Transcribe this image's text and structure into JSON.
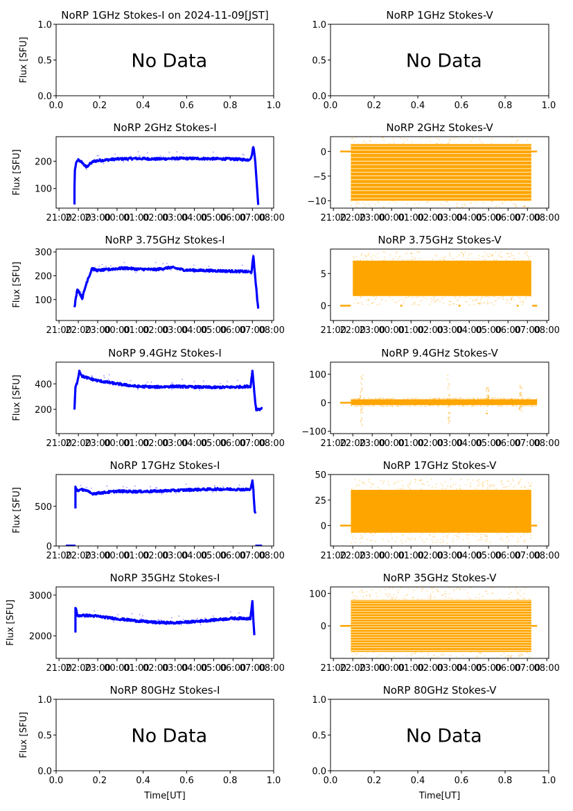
{
  "figure": {
    "date_label": "2024-11-09[JST]",
    "xlabel": "Time[UT]",
    "ylabel": "Flux [SFU]",
    "no_data_text": "No Data",
    "colors": {
      "stokes_i": "#0000ff",
      "stokes_v": "#ffa500",
      "axes": "#000000"
    }
  },
  "chart_data": [
    {
      "id": "1ghz-i",
      "type": "scatter",
      "title": "NoRP 1GHz Stokes-I on 2024-11-09[JST]",
      "ylabel": "Flux [SFU]",
      "has_data": false,
      "no_data_text": "No Data",
      "xlim": [
        0,
        1
      ],
      "ylim": [
        0,
        1
      ],
      "xticks": [
        "0.0",
        "0.2",
        "0.4",
        "0.6",
        "0.8",
        "1.0"
      ],
      "yticks": [
        "0.0",
        "0.5",
        "1.0"
      ]
    },
    {
      "id": "1ghz-v",
      "type": "scatter",
      "title": "NoRP 1GHz Stokes-V",
      "ylabel": "",
      "has_data": false,
      "no_data_text": "No Data",
      "xlim": [
        0,
        1
      ],
      "ylim": [
        0,
        1
      ],
      "xticks": [
        "0.0",
        "0.2",
        "0.4",
        "0.6",
        "0.8",
        "1.0"
      ],
      "yticks": [
        "0.0",
        "0.5",
        "1.0"
      ]
    },
    {
      "id": "2ghz-i",
      "type": "line",
      "title": "NoRP 2GHz Stokes-I",
      "ylabel": "Flux [SFU]",
      "has_data": true,
      "stokes": "I",
      "xlim_hours": [
        -3.15,
        8.1
      ],
      "ylim": [
        28,
        290
      ],
      "yticks": [
        100,
        200
      ],
      "xticks": [
        "21:00",
        "22:00",
        "23:00",
        "00:00",
        "01:00",
        "02:00",
        "03:00",
        "04:00",
        "05:00",
        "06:00",
        "07:00",
        "08:00"
      ],
      "x_hours": [
        -2.2,
        -2.2,
        -2.18,
        -2.15,
        -2.1,
        -2.0,
        -1.8,
        -1.6,
        -1.4,
        -1.2,
        -1.0,
        -0.5,
        0.0,
        1.0,
        2.0,
        3.0,
        4.0,
        5.0,
        6.0,
        6.8,
        6.95,
        7.05,
        7.15,
        7.25,
        7.3
      ],
      "values": [
        40,
        100,
        165,
        180,
        195,
        205,
        195,
        178,
        190,
        200,
        202,
        205,
        208,
        210,
        208,
        210,
        210,
        209,
        208,
        205,
        215,
        255,
        200,
        90,
        40
      ]
    },
    {
      "id": "2ghz-v",
      "type": "scatter",
      "title": "NoRP 2GHz Stokes-V",
      "ylabel": "",
      "has_data": true,
      "stokes": "V",
      "xlim_hours": [
        -3.15,
        8.1
      ],
      "ylim": [
        -11.5,
        3
      ],
      "yticks": [
        -10,
        -5,
        0
      ],
      "xticks": [
        "21:00",
        "22:00",
        "23:00",
        "00:00",
        "01:00",
        "02:00",
        "03:00",
        "04:00",
        "05:00",
        "06:00",
        "07:00",
        "08:00"
      ],
      "band_range": [
        -10,
        1.5
      ],
      "band_x_hours": [
        -2.1,
        7.2
      ],
      "quantized_levels_step": 0.75,
      "flat_segments": [
        {
          "x_hours": [
            -2.65,
            -2.1
          ],
          "value": 0
        },
        {
          "x_hours": [
            7.2,
            7.5
          ],
          "value": 0
        }
      ]
    },
    {
      "id": "3-75ghz-i",
      "type": "line",
      "title": "NoRP 3.75GHz Stokes-I",
      "ylabel": "Flux [SFU]",
      "has_data": true,
      "stokes": "I",
      "xlim_hours": [
        -3.15,
        8.1
      ],
      "ylim": [
        12,
        312
      ],
      "yticks": [
        100,
        200,
        300
      ],
      "xticks": [
        "21:00",
        "22:00",
        "23:00",
        "00:00",
        "01:00",
        "02:00",
        "03:00",
        "04:00",
        "05:00",
        "06:00",
        "07:00",
        "08:00"
      ],
      "x_hours": [
        -2.2,
        -2.15,
        -2.05,
        -1.95,
        -1.8,
        -1.65,
        -1.5,
        -1.4,
        -1.3,
        -1.0,
        0.0,
        0.5,
        1.0,
        2.0,
        2.8,
        3.5,
        4.5,
        5.5,
        6.5,
        6.95,
        7.05,
        7.15,
        7.25,
        7.3
      ],
      "values": [
        65,
        95,
        145,
        130,
        105,
        150,
        190,
        205,
        230,
        222,
        230,
        232,
        228,
        226,
        235,
        224,
        222,
        220,
        218,
        215,
        280,
        190,
        100,
        62
      ]
    },
    {
      "id": "3-75ghz-v",
      "type": "scatter",
      "title": "NoRP 3.75GHz Stokes-V",
      "ylabel": "",
      "has_data": true,
      "stokes": "V",
      "xlim_hours": [
        -3.15,
        8.1
      ],
      "ylim": [
        -2.3,
        8.8
      ],
      "yticks": [
        0,
        5
      ],
      "xticks": [
        "21:00",
        "22:00",
        "23:00",
        "00:00",
        "01:00",
        "02:00",
        "03:00",
        "04:00",
        "05:00",
        "06:00",
        "07:00",
        "08:00"
      ],
      "band_range": [
        1.5,
        7
      ],
      "band_x_hours": [
        -2.0,
        7.2
      ],
      "flat_segments": [
        {
          "x_hours": [
            -2.65,
            -2.1
          ],
          "value": 0
        },
        {
          "x_hours": [
            0.45,
            0.55
          ],
          "value": 0
        },
        {
          "x_hours": [
            3.45,
            3.55
          ],
          "value": 0
        },
        {
          "x_hours": [
            6.45,
            6.55
          ],
          "value": 0
        },
        {
          "x_hours": [
            7.25,
            7.5
          ],
          "value": 0
        }
      ]
    },
    {
      "id": "9-4ghz-i",
      "type": "line",
      "title": "NoRP 9.4GHz Stokes-I",
      "ylabel": "Flux [SFU]",
      "has_data": true,
      "stokes": "I",
      "xlim_hours": [
        -3.15,
        8.1
      ],
      "ylim": [
        10,
        570
      ],
      "yticks": [
        200,
        400
      ],
      "xticks": [
        "21:00",
        "22:00",
        "23:00",
        "00:00",
        "01:00",
        "02:00",
        "03:00",
        "04:00",
        "05:00",
        "06:00",
        "07:00",
        "08:00"
      ],
      "x_hours": [
        -2.2,
        -2.15,
        -2.05,
        -1.95,
        -1.8,
        -1.5,
        -1.0,
        0.0,
        1.0,
        2.0,
        3.0,
        4.0,
        5.0,
        6.0,
        6.9,
        7.0,
        7.05,
        7.15,
        7.2,
        7.5
      ],
      "values": [
        200,
        370,
        420,
        500,
        460,
        445,
        425,
        400,
        380,
        375,
        380,
        375,
        372,
        374,
        380,
        500,
        420,
        250,
        200,
        205
      ]
    },
    {
      "id": "9-4ghz-v",
      "type": "scatter",
      "title": "NoRP 9.4GHz Stokes-V",
      "ylabel": "",
      "has_data": true,
      "stokes": "V",
      "xlim_hours": [
        -3.15,
        8.1
      ],
      "ylim": [
        -108,
        142
      ],
      "yticks": [
        -100,
        0,
        100
      ],
      "xticks": [
        "21:00",
        "22:00",
        "23:00",
        "00:00",
        "01:00",
        "02:00",
        "03:00",
        "04:00",
        "05:00",
        "06:00",
        "07:00",
        "08:00"
      ],
      "band_range": [
        -8,
        12
      ],
      "band_x_hours": [
        -2.1,
        7.5
      ],
      "spikes": [
        {
          "x_hours": -1.55,
          "range": [
            -90,
            100
          ]
        },
        {
          "x_hours": 2.95,
          "range": [
            -75,
            100
          ]
        },
        {
          "x_hours": 6.65,
          "range": [
            -30,
            60
          ]
        },
        {
          "x_hours": 4.95,
          "range": [
            -40,
            55
          ]
        }
      ],
      "flat_segments": [
        {
          "x_hours": [
            -2.65,
            -2.1
          ],
          "value": 0
        }
      ]
    },
    {
      "id": "17ghz-i",
      "type": "line",
      "title": "NoRP 17GHz Stokes-I",
      "ylabel": "Flux [SFU]",
      "has_data": true,
      "stokes": "I",
      "xlim_hours": [
        -3.15,
        8.1
      ],
      "ylim": [
        0,
        900
      ],
      "yticks": [
        0,
        500
      ],
      "xticks": [
        "21:00",
        "22:00",
        "23:00",
        "00:00",
        "01:00",
        "02:00",
        "03:00",
        "04:00",
        "05:00",
        "06:00",
        "07:00",
        "08:00"
      ],
      "x_hours": [
        -2.15,
        -2.15,
        -2.05,
        -1.7,
        -1.3,
        -1.0,
        0.0,
        1.0,
        2.0,
        3.0,
        4.0,
        5.0,
        6.0,
        6.9,
        7.0,
        7.05,
        7.12,
        7.15
      ],
      "values": [
        470,
        740,
        700,
        710,
        660,
        665,
        690,
        685,
        690,
        700,
        710,
        715,
        715,
        710,
        820,
        700,
        450,
        410
      ],
      "zero_segments": [
        [
          -2.65,
          -2.15
        ],
        [
          7.15,
          7.5
        ]
      ]
    },
    {
      "id": "17ghz-v",
      "type": "scatter",
      "title": "NoRP 17GHz Stokes-V",
      "ylabel": "",
      "has_data": true,
      "stokes": "V",
      "xlim_hours": [
        -3.15,
        8.1
      ],
      "ylim": [
        -20,
        50
      ],
      "yticks": [
        0,
        25,
        50
      ],
      "xticks": [
        "21:00",
        "22:00",
        "23:00",
        "00:00",
        "01:00",
        "02:00",
        "03:00",
        "04:00",
        "05:00",
        "06:00",
        "07:00",
        "08:00"
      ],
      "band_range": [
        -7,
        35
      ],
      "band_x_hours": [
        -2.1,
        7.2
      ],
      "flat_segments": [
        {
          "x_hours": [
            -2.65,
            -2.1
          ],
          "value": 0
        },
        {
          "x_hours": [
            7.2,
            7.5
          ],
          "value": 0
        }
      ]
    },
    {
      "id": "35ghz-i",
      "type": "line",
      "title": "NoRP 35GHz Stokes-I",
      "ylabel": "Flux [SFU]",
      "has_data": true,
      "stokes": "I",
      "xlim_hours": [
        -3.15,
        8.1
      ],
      "ylim": [
        1450,
        3200
      ],
      "yticks": [
        2000,
        3000
      ],
      "xticks": [
        "21:00",
        "22:00",
        "23:00",
        "00:00",
        "01:00",
        "02:00",
        "03:00",
        "04:00",
        "05:00",
        "06:00",
        "07:00",
        "08:00"
      ],
      "x_hours": [
        -2.15,
        -2.15,
        -2.05,
        -1.5,
        -1.0,
        0.0,
        1.0,
        2.0,
        3.0,
        4.0,
        5.0,
        6.0,
        6.9,
        7.0,
        7.05,
        7.1
      ],
      "values": [
        2100,
        2700,
        2500,
        2500,
        2480,
        2420,
        2370,
        2330,
        2320,
        2350,
        2390,
        2430,
        2430,
        2850,
        2400,
        2020
      ]
    },
    {
      "id": "35ghz-v",
      "type": "scatter",
      "title": "NoRP 35GHz Stokes-V",
      "ylabel": "",
      "has_data": true,
      "stokes": "V",
      "xlim_hours": [
        -3.15,
        8.1
      ],
      "ylim": [
        -100,
        120
      ],
      "yticks": [
        0,
        100
      ],
      "xticks": [
        "21:00",
        "22:00",
        "23:00",
        "00:00",
        "01:00",
        "02:00",
        "03:00",
        "04:00",
        "05:00",
        "06:00",
        "07:00",
        "08:00"
      ],
      "band_range": [
        -80,
        80
      ],
      "band_x_hours": [
        -2.1,
        7.2
      ],
      "quantized_levels_step": 8,
      "flat_segments": [
        {
          "x_hours": [
            -2.65,
            -2.1
          ],
          "value": 0
        },
        {
          "x_hours": [
            7.2,
            7.5
          ],
          "value": 0
        }
      ]
    },
    {
      "id": "80ghz-i",
      "type": "scatter",
      "title": "NoRP 80GHz Stokes-I",
      "ylabel": "Flux [SFU]",
      "xlabel": "Time[UT]",
      "has_data": false,
      "no_data_text": "No Data",
      "xlim": [
        0,
        1
      ],
      "ylim": [
        0,
        1
      ],
      "xticks": [
        "0.0",
        "0.2",
        "0.4",
        "0.6",
        "0.8",
        "1.0"
      ],
      "yticks": [
        "0.0",
        "0.5",
        "1.0"
      ]
    },
    {
      "id": "80ghz-v",
      "type": "scatter",
      "title": "NoRP 80GHz Stokes-V",
      "ylabel": "",
      "xlabel": "Time[UT]",
      "has_data": false,
      "no_data_text": "No Data",
      "xlim": [
        0,
        1
      ],
      "ylim": [
        0,
        1
      ],
      "xticks": [
        "0.0",
        "0.2",
        "0.4",
        "0.6",
        "0.8",
        "1.0"
      ],
      "yticks": [
        "0.0",
        "0.5",
        "1.0"
      ]
    }
  ]
}
